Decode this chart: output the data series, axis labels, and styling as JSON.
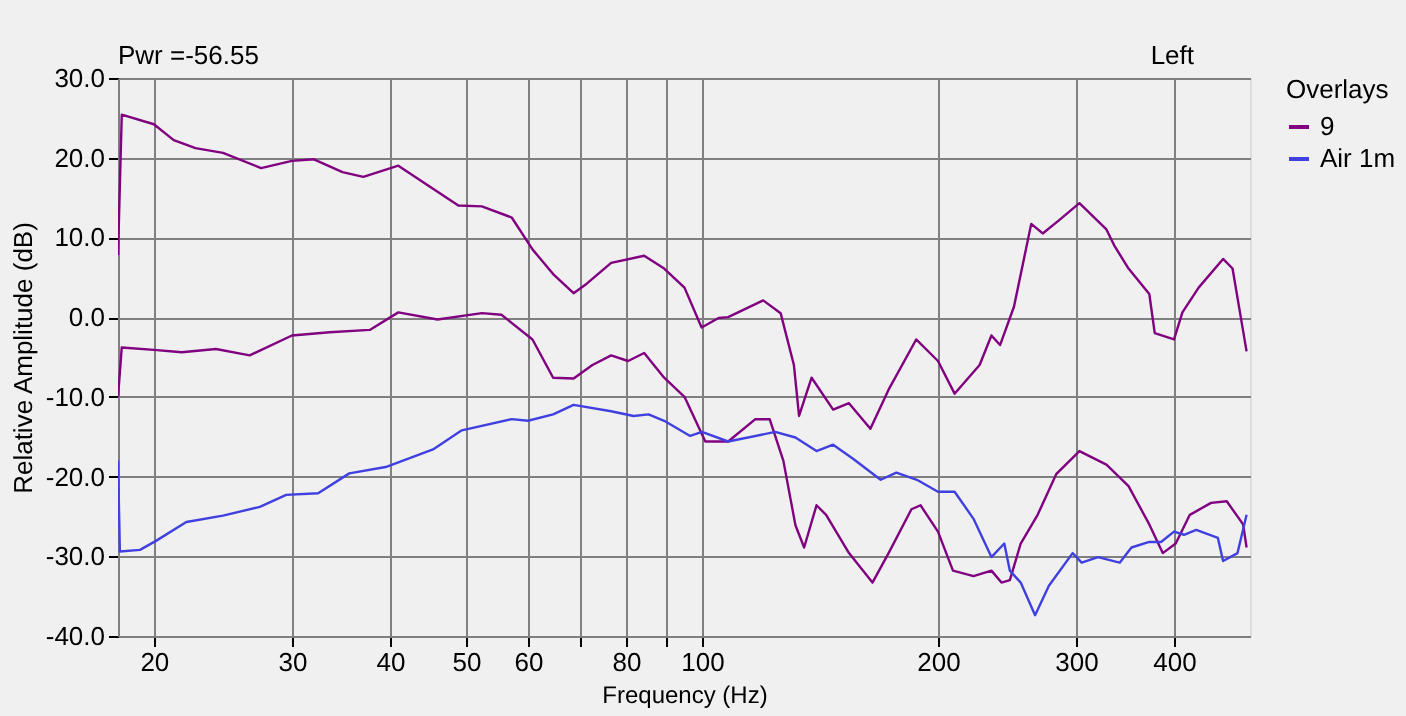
{
  "chart_data": {
    "type": "line",
    "xlabel": "Frequency (Hz)",
    "ylabel": "Relative Amplitude (dB)",
    "legend_title": "Overlays",
    "log": "x",
    "grid": true,
    "legend": "top right",
    "marker": "none",
    "line_style": "solid",
    "xlim": [
      18,
      500
    ],
    "ylim": [
      -40,
      30
    ],
    "xticks": [
      20,
      30,
      40,
      50,
      60,
      {
        "value": 70,
        "label": null
      },
      80,
      {
        "value": 90,
        "label": null
      },
      100,
      200,
      300,
      400
    ],
    "yticks": [
      {
        "value": 30,
        "label": "30.0"
      },
      {
        "value": 20,
        "label": "20.0"
      },
      {
        "value": 10,
        "label": "10.0"
      },
      {
        "value": 0,
        "label": "0.0"
      },
      {
        "value": -10,
        "label": "-10.0"
      },
      {
        "value": -20,
        "label": "-20.0"
      },
      {
        "value": -30,
        "label": "-30.0"
      },
      {
        "value": -40,
        "label": "-40.0"
      }
    ],
    "annotations": [
      "Pwr =-56.55",
      "Left"
    ],
    "series": [
      {
        "name": "9",
        "color": "#800080",
        "x": [
          18,
          18.2,
          20,
          21.2,
          22.6,
          24.5,
          27.4,
          30,
          32,
          34.8,
          37,
          41,
          44.6,
          48.9,
          52.4,
          57.2,
          60.8,
          64.6,
          68.6,
          71.3,
          76.6,
          84.4,
          89.5,
          95,
          99.9,
          105,
          108,
          119.7,
          126,
          131,
          133,
          138,
          147,
          154,
          164,
          173,
          187.6,
          200,
          210,
          226,
          234,
          240,
          250,
          263,
          272,
          285,
          303,
          328,
          336,
          350,
          372,
          378,
          400,
          410,
          430,
          462,
          475,
          495
        ],
        "values": [
          7.8,
          25.4,
          24.2,
          22.2,
          21.2,
          20.6,
          18.7,
          19.6,
          19.8,
          18.2,
          17.6,
          19,
          16.6,
          14,
          13.9,
          12.5,
          8.5,
          5.4,
          3,
          4.2,
          6.8,
          7.7,
          6.1,
          3.7,
          -1.3,
          -0.1,
          0,
          2.1,
          0.5,
          -6,
          -12.4,
          -7.6,
          -11.6,
          -10.8,
          -14,
          -9.1,
          -2.8,
          -5.5,
          -9.6,
          -6,
          -2.3,
          -3.5,
          1.3,
          11.7,
          10.5,
          12.1,
          14.3,
          11,
          8.9,
          6.1,
          2.9,
          -2,
          -2.8,
          0.6,
          3.7,
          7.3,
          6.1,
          -4.3
        ]
      },
      {
        "color": "#800080",
        "x": [
          18,
          18.2,
          20,
          21.7,
          24,
          26.5,
          30,
          33.5,
          37.7,
          41,
          46,
          52.4,
          55.5,
          60.8,
          64.6,
          68.6,
          72.5,
          76.6,
          80.5,
          84.4,
          89.5,
          95,
          101,
          108,
          117,
          122,
          127,
          131.6,
          135,
          140,
          144,
          154,
          165,
          173,
          185,
          190,
          200,
          209,
          222,
          234,
          241,
          247,
          255,
          268,
          283,
          303,
          328,
          350,
          372,
          387,
          402,
          419,
          446,
          467,
          490,
          495
        ],
        "values": [
          -10,
          -3.8,
          -4.1,
          -4.4,
          -4,
          -4.8,
          -2.3,
          -1.9,
          -1.6,
          0.6,
          -0.3,
          0.5,
          0.3,
          -2.8,
          -7.6,
          -7.7,
          -6,
          -4.8,
          -5.5,
          -4.5,
          -7.6,
          -10,
          -15.6,
          -15.6,
          -12.8,
          -12.8,
          -18,
          -26.1,
          -28.9,
          -23.6,
          -24.8,
          -29.6,
          -33.3,
          -29.6,
          -24.1,
          -23.6,
          -26.9,
          -31.8,
          -32.5,
          -31.8,
          -33.3,
          -33,
          -28.4,
          -24.8,
          -19.7,
          -16.8,
          -18.5,
          -21.2,
          -26,
          -29.6,
          -28.4,
          -24.8,
          -23.3,
          -23.1,
          -26,
          -28.9
        ]
      },
      {
        "name": "Air 1m",
        "color": "#4040e0",
        "x": [
          18,
          18.1,
          19.2,
          20.1,
          22,
          24.5,
          27.3,
          29.5,
          32.4,
          35.5,
          39.5,
          45.4,
          49.4,
          57.2,
          60,
          64.6,
          68.6,
          76.6,
          81.8,
          85.5,
          89.5,
          96.6,
          100,
          108,
          124,
          131.6,
          140,
          147,
          156,
          169,
          177,
          188,
          200,
          210,
          222,
          234,
          243,
          247,
          255,
          266,
          277,
          297,
          305,
          320,
          341,
          353,
          372,
          385,
          400,
          412,
          427,
          455,
          462,
          482,
          495
        ],
        "values": [
          -18,
          -29.4,
          -29.2,
          -28.1,
          -25.7,
          -24.9,
          -23.8,
          -22.3,
          -22.1,
          -19.6,
          -18.8,
          -16.6,
          -14.2,
          -12.8,
          -13,
          -12.2,
          -11,
          -11.8,
          -12.4,
          -12.2,
          -13,
          -14.9,
          -14.4,
          -15.6,
          -14.4,
          -15.1,
          -16.8,
          -16,
          -17.8,
          -20.4,
          -19.5,
          -20.4,
          -21.9,
          -21.9,
          -25.3,
          -30.1,
          -28.4,
          -31.8,
          -33.3,
          -37.4,
          -33.7,
          -29.6,
          -30.8,
          -30.1,
          -30.8,
          -28.9,
          -28.2,
          -28.2,
          -26.9,
          -27.3,
          -26.7,
          -27.7,
          -30.6,
          -29.6,
          -24.8
        ]
      }
    ]
  }
}
